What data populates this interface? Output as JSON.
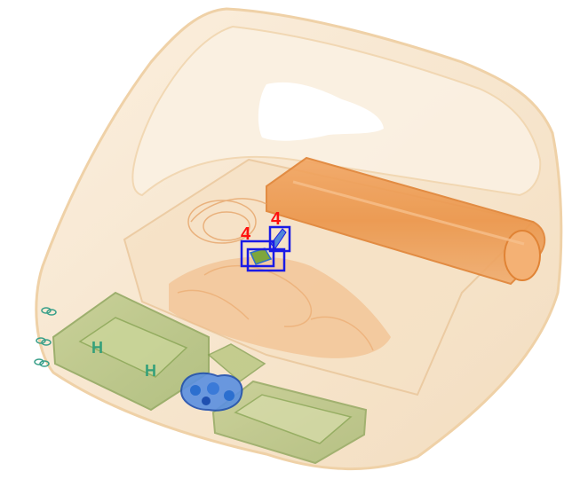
{
  "image": {
    "description_kind": "x-ray baggage scan",
    "colors": {
      "background": "#ffffff",
      "organic_light": "#f4d9b4",
      "organic_mid": "#eeb57e",
      "organic_dark": "#e58c43",
      "inorganic_green": "#8fb25a",
      "dense_blue": "#2c6fcf",
      "box_blue": "#1a1ae6",
      "label_red": "#ff1010"
    }
  },
  "detections": [
    {
      "label": "4"
    },
    {
      "label": "4"
    }
  ]
}
